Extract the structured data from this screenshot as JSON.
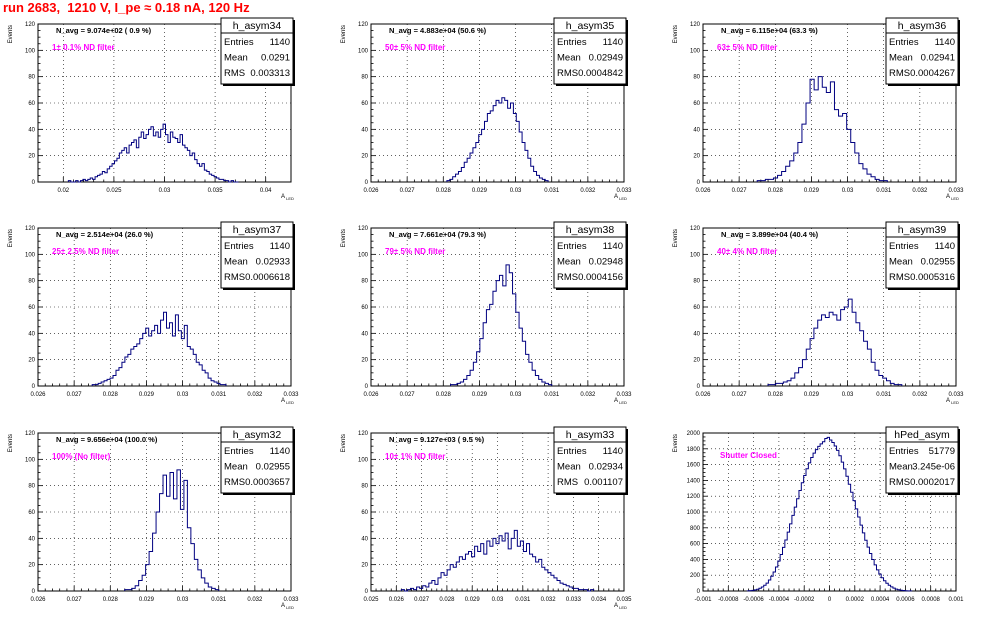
{
  "page": {
    "title": "run 2683,  1210 V, I_pe ≈ 0.18 nA, 120 Hz"
  },
  "colors": {
    "histogram": "#000080",
    "grid": "#000000",
    "label": "#ff00ff",
    "title": "#ff0000"
  },
  "stat_labels": {
    "entries": "Entries",
    "mean": "Mean",
    "rms": "RMS"
  },
  "chart_data": [
    {
      "type": "histogram",
      "name": "h_asym34",
      "y_axis_label": "Events",
      "x_axis_label": "A_LED",
      "header": "N_avg = 9.074e+02 ( 0.9 %)",
      "filter_label": "1± 0.1% ND filter",
      "stats": {
        "entries": "1140",
        "mean": "0.0291",
        "rms": "0.003313"
      },
      "xlim": [
        0.0175,
        0.0425
      ],
      "ylim": [
        0,
        120
      ],
      "x_ticks": [
        "0.02",
        "0.025",
        "0.03",
        "0.035",
        "0.04"
      ],
      "x_tick_values": [
        0.02,
        0.025,
        0.03,
        0.035,
        0.04
      ],
      "y_ticks": [
        "0",
        "20",
        "40",
        "60",
        "80",
        "100",
        "120"
      ],
      "y_tick_values": [
        0,
        20,
        40,
        60,
        80,
        100,
        120
      ],
      "values": [
        1,
        0,
        0,
        1,
        0,
        1,
        2,
        1,
        2,
        3,
        2,
        4,
        5,
        6,
        8,
        7,
        10,
        12,
        14,
        16,
        18,
        22,
        24,
        26,
        22,
        28,
        30,
        32,
        26,
        34,
        38,
        33,
        36,
        40,
        42,
        35,
        38,
        34,
        40,
        44,
        36,
        30,
        38,
        34,
        33,
        30,
        36,
        28,
        26,
        24,
        20,
        22,
        17,
        14,
        12,
        14,
        9,
        8,
        6,
        5,
        4,
        3,
        2,
        2,
        1,
        1,
        0,
        1,
        0,
        0
      ],
      "bin_range": [
        0.0205,
        0.0373
      ]
    },
    {
      "type": "histogram",
      "name": "h_asym35",
      "y_axis_label": "Events",
      "x_axis_label": "A_LED",
      "header": "N_avg = 4.883e+04 (50.6 %)",
      "filter_label": "50± 5% ND filter",
      "stats": {
        "entries": "1140",
        "mean": "0.02949",
        "rms": "0.0004842"
      },
      "xlim": [
        0.026,
        0.033
      ],
      "ylim": [
        0,
        120
      ],
      "x_ticks": [
        "0.026",
        "0.027",
        "0.028",
        "0.029",
        "0.03",
        "0.031",
        "0.032",
        "0.033"
      ],
      "x_tick_values": [
        0.026,
        0.027,
        0.028,
        0.029,
        0.03,
        0.031,
        0.032,
        0.033
      ],
      "y_ticks": [
        "0",
        "20",
        "40",
        "60",
        "80",
        "100",
        "120"
      ],
      "y_tick_values": [
        0,
        20,
        40,
        60,
        80,
        100,
        120
      ],
      "values": [
        1,
        2,
        4,
        6,
        8,
        11,
        15,
        18,
        22,
        26,
        30,
        36,
        40,
        46,
        52,
        54,
        58,
        62,
        60,
        64,
        62,
        56,
        60,
        52,
        46,
        38,
        30,
        24,
        18,
        12,
        8,
        5,
        3,
        2,
        1
      ],
      "bin_range": [
        0.0281,
        0.0309
      ]
    },
    {
      "type": "histogram",
      "name": "h_asym36",
      "y_axis_label": "Events",
      "x_axis_label": "A_LED",
      "header": "N_avg = 6.115e+04 (63.3 %)",
      "filter_label": "63± 5% ND filter",
      "stats": {
        "entries": "1140",
        "mean": "0.02941",
        "rms": "0.0004267"
      },
      "xlim": [
        0.026,
        0.033
      ],
      "ylim": [
        0,
        120
      ],
      "x_ticks": [
        "0.026",
        "0.027",
        "0.028",
        "0.029",
        "0.03",
        "0.031",
        "0.032",
        "0.033"
      ],
      "x_tick_values": [
        0.026,
        0.027,
        0.028,
        0.029,
        0.03,
        0.031,
        0.032,
        0.033
      ],
      "y_ticks": [
        "0",
        "20",
        "40",
        "60",
        "80",
        "100",
        "120"
      ],
      "y_tick_values": [
        0,
        20,
        40,
        60,
        80,
        100,
        120
      ],
      "values": [
        1,
        1,
        2,
        2,
        3,
        5,
        8,
        12,
        16,
        22,
        30,
        44,
        60,
        78,
        70,
        80,
        72,
        68,
        76,
        55,
        50,
        52,
        40,
        30,
        22,
        14,
        10,
        6,
        4,
        2,
        1,
        1
      ],
      "bin_range": [
        0.0275,
        0.0311
      ]
    },
    {
      "type": "histogram",
      "name": "h_asym37",
      "y_axis_label": "Events",
      "x_axis_label": "A_LED",
      "header": "N_avg = 2.514e+04 (26.0 %)",
      "filter_label": "25± 2.5% ND filter",
      "stats": {
        "entries": "1140",
        "mean": "0.02933",
        "rms": "0.0006618"
      },
      "xlim": [
        0.026,
        0.033
      ],
      "ylim": [
        0,
        120
      ],
      "x_ticks": [
        "0.026",
        "0.027",
        "0.028",
        "0.029",
        "0.03",
        "0.031",
        "0.032",
        "0.033"
      ],
      "x_tick_values": [
        0.026,
        0.027,
        0.028,
        0.029,
        0.03,
        0.031,
        0.032,
        0.033
      ],
      "y_ticks": [
        "0",
        "20",
        "40",
        "60",
        "80",
        "100",
        "120"
      ],
      "y_tick_values": [
        0,
        20,
        40,
        60,
        80,
        100,
        120
      ],
      "values": [
        1,
        1,
        2,
        3,
        4,
        5,
        6,
        8,
        12,
        14,
        18,
        22,
        24,
        28,
        30,
        32,
        36,
        40,
        44,
        38,
        42,
        46,
        40,
        50,
        56,
        44,
        48,
        38,
        54,
        42,
        36,
        46,
        30,
        28,
        24,
        18,
        16,
        12,
        10,
        6,
        4,
        3,
        2,
        1,
        1
      ],
      "bin_range": [
        0.0275,
        0.0312
      ]
    },
    {
      "type": "histogram",
      "name": "h_asym38",
      "y_axis_label": "Events",
      "x_axis_label": "A_LED",
      "header": "N_avg = 7.661e+04 (79.3 %)",
      "filter_label": "79± 5% ND filter",
      "stats": {
        "entries": "1140",
        "mean": "0.02948",
        "rms": "0.0004156"
      },
      "xlim": [
        0.026,
        0.033
      ],
      "ylim": [
        0,
        120
      ],
      "x_ticks": [
        "0.026",
        "0.027",
        "0.028",
        "0.029",
        "0.03",
        "0.031",
        "0.032",
        "0.033"
      ],
      "x_tick_values": [
        0.026,
        0.027,
        0.028,
        0.029,
        0.03,
        0.031,
        0.032,
        0.033
      ],
      "y_ticks": [
        "0",
        "20",
        "40",
        "60",
        "80",
        "100",
        "120"
      ],
      "y_tick_values": [
        0,
        20,
        40,
        60,
        80,
        100,
        120
      ],
      "values": [
        1,
        1,
        2,
        3,
        5,
        8,
        12,
        18,
        26,
        36,
        48,
        58,
        62,
        72,
        80,
        84,
        76,
        92,
        86,
        70,
        56,
        44,
        34,
        24,
        18,
        12,
        8,
        5,
        3,
        2,
        1
      ],
      "bin_range": [
        0.0282,
        0.031
      ]
    },
    {
      "type": "histogram",
      "name": "h_asym39",
      "y_axis_label": "Events",
      "x_axis_label": "A_LED",
      "header": "N_avg = 3.899e+04 (40.4 %)",
      "filter_label": "40± 4% ND filter",
      "stats": {
        "entries": "1140",
        "mean": "0.02955",
        "rms": "0.0005316"
      },
      "xlim": [
        0.026,
        0.033
      ],
      "ylim": [
        0,
        120
      ],
      "x_ticks": [
        "0.026",
        "0.027",
        "0.028",
        "0.029",
        "0.03",
        "0.031",
        "0.032",
        "0.033"
      ],
      "x_tick_values": [
        0.026,
        0.027,
        0.028,
        0.029,
        0.03,
        0.031,
        0.032,
        0.033
      ],
      "y_ticks": [
        "0",
        "20",
        "40",
        "60",
        "80",
        "100",
        "120"
      ],
      "y_tick_values": [
        0,
        20,
        40,
        60,
        80,
        100,
        120
      ],
      "values": [
        1,
        1,
        2,
        2,
        3,
        4,
        6,
        10,
        14,
        20,
        28,
        36,
        44,
        50,
        54,
        52,
        56,
        54,
        50,
        58,
        60,
        66,
        56,
        48,
        42,
        34,
        28,
        18,
        12,
        8,
        6,
        4,
        2,
        1,
        1
      ],
      "bin_range": [
        0.0278,
        0.0315
      ]
    },
    {
      "type": "histogram",
      "name": "h_asym32",
      "y_axis_label": "Events",
      "x_axis_label": "A_LED",
      "header": "N_avg = 9.656e+04 (100.0 %)",
      "filter_label": "100% (No filter)",
      "stats": {
        "entries": "1140",
        "mean": "0.02955",
        "rms": "0.0003657"
      },
      "xlim": [
        0.026,
        0.033
      ],
      "ylim": [
        0,
        120
      ],
      "x_ticks": [
        "0.026",
        "0.027",
        "0.028",
        "0.029",
        "0.03",
        "0.031",
        "0.032",
        "0.033"
      ],
      "x_tick_values": [
        0.026,
        0.027,
        0.028,
        0.029,
        0.03,
        0.031,
        0.032,
        0.033
      ],
      "y_ticks": [
        "0",
        "20",
        "40",
        "60",
        "80",
        "100",
        "120"
      ],
      "y_tick_values": [
        0,
        20,
        40,
        60,
        80,
        100,
        120
      ],
      "values": [
        1,
        1,
        2,
        4,
        8,
        12,
        20,
        30,
        44,
        60,
        74,
        88,
        72,
        90,
        70,
        92,
        62,
        84,
        48,
        36,
        24,
        16,
        10,
        6,
        3,
        2,
        1
      ],
      "bin_range": [
        0.0284,
        0.031
      ]
    },
    {
      "type": "histogram",
      "name": "h_asym33",
      "y_axis_label": "Events",
      "x_axis_label": "A_LED",
      "header": "N_avg = 9.127e+03 ( 9.5 %)",
      "filter_label": "10± 1% ND filter",
      "stats": {
        "entries": "1140",
        "mean": "0.02934",
        "rms": "0.001107"
      },
      "xlim": [
        0.025,
        0.035
      ],
      "ylim": [
        0,
        120
      ],
      "x_ticks": [
        "0.025",
        "0.026",
        "0.027",
        "0.028",
        "0.029",
        "0.03",
        "0.031",
        "0.032",
        "0.033",
        "0.034",
        "0.035"
      ],
      "x_tick_values": [
        0.025,
        0.026,
        0.027,
        0.028,
        0.029,
        0.03,
        0.031,
        0.032,
        0.033,
        0.034,
        0.035
      ],
      "y_ticks": [
        "0",
        "20",
        "40",
        "60",
        "80",
        "100",
        "120"
      ],
      "y_tick_values": [
        0,
        20,
        40,
        60,
        80,
        100,
        120
      ],
      "values": [
        1,
        0,
        1,
        2,
        1,
        3,
        2,
        4,
        3,
        6,
        8,
        5,
        10,
        14,
        12,
        16,
        20,
        18,
        22,
        26,
        24,
        28,
        30,
        26,
        34,
        30,
        36,
        28,
        38,
        34,
        40,
        36,
        42,
        38,
        44,
        32,
        40,
        46,
        34,
        38,
        30,
        36,
        28,
        26,
        22,
        24,
        18,
        16,
        14,
        12,
        10,
        8,
        6,
        5,
        4,
        3,
        2,
        2,
        1,
        1,
        1,
        0,
        1
      ],
      "bin_range": [
        0.0262,
        0.0338
      ]
    },
    {
      "type": "histogram",
      "name": "hPed_asym",
      "y_axis_label": "Events",
      "x_axis_label": "",
      "header": "",
      "filter_label": "Shutter Closed",
      "stats": {
        "entries": "51779",
        "mean": "3.245e-06",
        "rms": "0.0002017"
      },
      "xlim": [
        -0.001,
        0.001
      ],
      "ylim": [
        0,
        2000
      ],
      "x_ticks": [
        "-0.001",
        "-0.0008",
        "-0.0006",
        "-0.0004",
        "-0.0002",
        "0",
        "0.0002",
        "0.0004",
        "0.0006",
        "0.0008",
        "0.001"
      ],
      "x_tick_values": [
        -0.001,
        -0.0008,
        -0.0006,
        -0.0004,
        -0.0002,
        0,
        0.0002,
        0.0004,
        0.0006,
        0.0008,
        0.001
      ],
      "y_ticks": [
        "0",
        "200",
        "400",
        "600",
        "800",
        "1000",
        "1200",
        "1400",
        "1600",
        "1800",
        "2000"
      ],
      "y_tick_values": [
        0,
        200,
        400,
        600,
        800,
        1000,
        1200,
        1400,
        1600,
        1800,
        2000
      ],
      "values": [
        2,
        4,
        8,
        14,
        22,
        34,
        50,
        72,
        100,
        140,
        186,
        240,
        304,
        380,
        462,
        552,
        646,
        746,
        850,
        958,
        1062,
        1168,
        1272,
        1370,
        1462,
        1548,
        1622,
        1690,
        1746,
        1790,
        1830,
        1862,
        1890,
        1930,
        1944,
        1912,
        1880,
        1836,
        1780,
        1712,
        1632,
        1546,
        1452,
        1352,
        1250,
        1144,
        1040,
        936,
        834,
        736,
        642,
        556,
        474,
        398,
        330,
        268,
        214,
        168,
        130,
        98,
        72,
        52,
        36,
        24,
        16,
        10,
        6,
        3,
        2,
        1
      ],
      "bin_range": [
        -0.00065,
        0.00065
      ]
    }
  ]
}
